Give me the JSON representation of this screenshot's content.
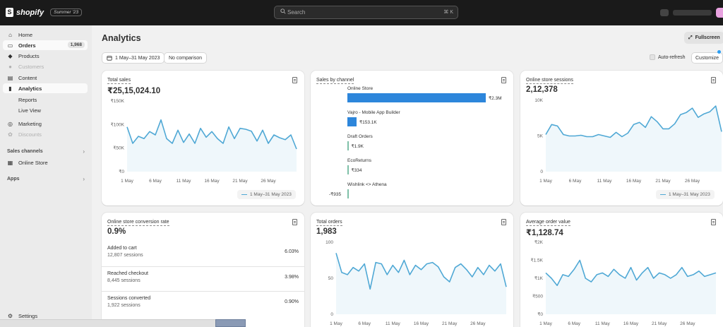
{
  "topbar": {
    "logo_text": "shopify",
    "edition": "Summer '23",
    "search_placeholder": "Search",
    "search_shortcut": "⌘ K"
  },
  "sidebar": {
    "home": "Home",
    "orders": "Orders",
    "orders_badge": "1,968",
    "products": "Products",
    "customers": "Customers",
    "content": "Content",
    "analytics": "Analytics",
    "reports": "Reports",
    "live_view": "Live View",
    "marketing": "Marketing",
    "discounts": "Discounts",
    "sales_channels": "Sales channels",
    "online_store": "Online Store",
    "apps": "Apps",
    "settings": "Settings"
  },
  "header": {
    "title": "Analytics",
    "fullscreen": "Fullscreen",
    "date_range": "1 May–31 May 2023",
    "comparison": "No comparison",
    "auto_refresh": "Auto-refresh",
    "customize": "Customize"
  },
  "cards": {
    "total_sales": {
      "title": "Total sales",
      "value": "₹25,15,024.10",
      "yticks": [
        "₹150K",
        "₹100K",
        "₹50K",
        "₹0"
      ],
      "xticks": [
        "1 May",
        "6 May",
        "11 May",
        "16 May",
        "21 May",
        "26 May"
      ],
      "legend": "1 May–31 May 2023"
    },
    "sales_by_channel": {
      "title": "Sales by channel",
      "channels": [
        {
          "name": "Online Store",
          "value": "₹2.3M"
        },
        {
          "name": "Vajro - Mobile App Builder",
          "value": "₹153.1K"
        },
        {
          "name": "Draft Orders",
          "value": "₹1.9K"
        },
        {
          "name": "EcoReturns",
          "value": "₹334"
        },
        {
          "name": "Wishlink <> Athena",
          "value": "-₹935"
        }
      ]
    },
    "sessions": {
      "title": "Online store sessions",
      "value": "2,12,378",
      "yticks": [
        "10K",
        "5K",
        "0"
      ],
      "xticks": [
        "1 May",
        "6 May",
        "11 May",
        "16 May",
        "21 May",
        "26 May"
      ],
      "legend": "1 May–31 May 2023"
    },
    "conversion": {
      "title": "Online store conversion rate",
      "value": "0.9%",
      "rows": [
        {
          "name": "Added to cart",
          "sub": "12,807 sessions",
          "pct": "6.03%"
        },
        {
          "name": "Reached checkout",
          "sub": "8,445 sessions",
          "pct": "3.98%"
        },
        {
          "name": "Sessions converted",
          "sub": "1,922 sessions",
          "pct": "0.90%"
        }
      ]
    },
    "total_orders": {
      "title": "Total orders",
      "value": "1,983",
      "yticks": [
        "100",
        "50",
        "0"
      ],
      "xticks": [
        "1 May",
        "6 May",
        "11 May",
        "16 May",
        "21 May",
        "26 May"
      ]
    },
    "aov": {
      "title": "Average order value",
      "value": "₹1,128.74",
      "yticks": [
        "₹2K",
        "₹1.5K",
        "₹1K",
        "₹500",
        "₹0"
      ],
      "xticks": [
        "1 May",
        "6 May",
        "11 May",
        "16 May",
        "21 May",
        "26 May"
      ]
    }
  },
  "chart_data": [
    {
      "type": "line",
      "name": "Total sales",
      "x": [
        1,
        2,
        3,
        4,
        5,
        6,
        7,
        8,
        9,
        10,
        11,
        12,
        13,
        14,
        15,
        16,
        17,
        18,
        19,
        20,
        21,
        22,
        23,
        24,
        25,
        26,
        27,
        28,
        29,
        30,
        31
      ],
      "values": [
        95000,
        60000,
        75000,
        70000,
        85000,
        78000,
        110000,
        70000,
        60000,
        88000,
        62000,
        80000,
        60000,
        92000,
        73000,
        85000,
        70000,
        60000,
        95000,
        70000,
        92000,
        90000,
        86000,
        65000,
        88000,
        60000,
        78000,
        72000,
        68000,
        78000,
        48000
      ],
      "ylim": [
        0,
        150000
      ]
    },
    {
      "type": "line",
      "name": "Online store sessions",
      "x": [
        1,
        2,
        3,
        4,
        5,
        6,
        7,
        8,
        9,
        10,
        11,
        12,
        13,
        14,
        15,
        16,
        17,
        18,
        19,
        20,
        21,
        22,
        23,
        24,
        25,
        26,
        27,
        28,
        29,
        30,
        31
      ],
      "values": [
        5200,
        6600,
        6400,
        5200,
        5000,
        5000,
        5100,
        4900,
        4900,
        5200,
        5000,
        4800,
        5500,
        4900,
        5400,
        6600,
        6900,
        6200,
        7700,
        7000,
        6000,
        6000,
        6700,
        8000,
        8300,
        8900,
        7600,
        8100,
        8400,
        9200,
        5600
      ],
      "ylim": [
        0,
        10000
      ]
    },
    {
      "type": "line",
      "name": "Total orders",
      "x": [
        1,
        2,
        3,
        4,
        5,
        6,
        7,
        8,
        9,
        10,
        11,
        12,
        13,
        14,
        15,
        16,
        17,
        18,
        19,
        20,
        21,
        22,
        23,
        24,
        25,
        26,
        27,
        28,
        29,
        30,
        31
      ],
      "values": [
        85,
        58,
        55,
        65,
        60,
        70,
        35,
        72,
        70,
        55,
        68,
        58,
        75,
        55,
        68,
        62,
        70,
        72,
        66,
        52,
        45,
        65,
        70,
        62,
        52,
        65,
        55,
        68,
        60,
        70,
        38
      ],
      "ylim": [
        0,
        100
      ]
    },
    {
      "type": "line",
      "name": "Average order value",
      "x": [
        1,
        2,
        3,
        4,
        5,
        6,
        7,
        8,
        9,
        10,
        11,
        12,
        13,
        14,
        15,
        16,
        17,
        18,
        19,
        20,
        21,
        22,
        23,
        24,
        25,
        26,
        27,
        28,
        29,
        30,
        31
      ],
      "values": [
        1150,
        1000,
        800,
        1100,
        1050,
        1250,
        1500,
        1000,
        900,
        1100,
        1150,
        1050,
        1250,
        1100,
        1000,
        1300,
        950,
        1150,
        1300,
        1000,
        1150,
        1100,
        1000,
        1100,
        1300,
        1050,
        1100,
        1200,
        1050,
        1100,
        1150
      ],
      "ylim": [
        0,
        2000
      ]
    },
    {
      "type": "bar",
      "name": "Sales by channel",
      "categories": [
        "Online Store",
        "Vajro - Mobile App Builder",
        "Draft Orders",
        "EcoReturns",
        "Wishlink <> Athena"
      ],
      "values": [
        2300000,
        153100,
        1900,
        334,
        -935
      ]
    }
  ]
}
